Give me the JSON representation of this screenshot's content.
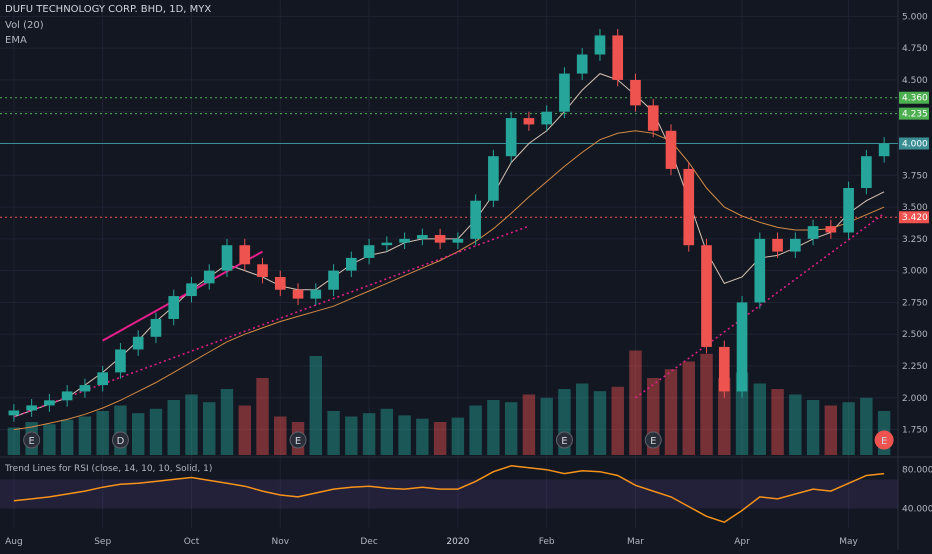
{
  "header": {
    "title": "DUFU TECHNOLOGY CORP. BHD, 1D, MYX",
    "vol_label": "Vol (20)",
    "ema_label": "EMA"
  },
  "indicator": {
    "label": "Trend Lines for RSI (close, 14, 10, 10, Solid, 1)",
    "ticks": [
      "80.000",
      "40.000"
    ]
  },
  "colors": {
    "background": "#131722",
    "up": "#26a69a",
    "down": "#ef5350",
    "grid": "#1f2332",
    "ema_fast": "#d7c3b4",
    "ema_slow": "#d38a45",
    "rsi": "#f7931a",
    "trend_pink": "#e91e8c",
    "level_green": "#4caf50",
    "level_red": "#ef5350",
    "level_teal": "#3b8f94"
  },
  "chart_data": {
    "type": "candlestick",
    "symbol": "DUFU TECHNOLOGY CORP. BHD",
    "interval": "1D",
    "exchange": "MYX",
    "ylim": [
      1.55,
      5.05
    ],
    "y_ticks": [
      "5.000",
      "4.750",
      "4.500",
      "4.250",
      "4.000",
      "3.750",
      "3.500",
      "3.250",
      "3.000",
      "2.750",
      "2.500",
      "2.250",
      "2.000",
      "1.750"
    ],
    "x_ticks": [
      "Aug",
      "Sep",
      "Oct",
      "Nov",
      "Dec",
      "2020",
      "Feb",
      "Mar",
      "Apr",
      "May"
    ],
    "levels": [
      {
        "value": 4.36,
        "label": "4.360",
        "color": "#4caf50",
        "style": "dotted"
      },
      {
        "value": 4.235,
        "label": "4.235",
        "color": "#4caf50",
        "style": "dotted"
      },
      {
        "value": 4.0,
        "label": "4.000",
        "color": "#3b8f94",
        "style": "solid"
      },
      {
        "value": 3.42,
        "label": "3.420",
        "color": "#ef5350",
        "style": "dotted"
      }
    ],
    "price_series": {
      "name": "close",
      "points": [
        [
          "Aug",
          1.9
        ],
        [
          "Aug",
          1.94
        ],
        [
          "Aug",
          1.98
        ],
        [
          "Aug",
          2.05
        ],
        [
          "Aug",
          2.1
        ],
        [
          "Sep",
          2.2
        ],
        [
          "Sep",
          2.38
        ],
        [
          "Sep",
          2.48
        ],
        [
          "Sep",
          2.62
        ],
        [
          "Sep",
          2.8
        ],
        [
          "Oct",
          2.9
        ],
        [
          "Oct",
          3.0
        ],
        [
          "Oct",
          3.2
        ],
        [
          "Oct",
          3.05
        ],
        [
          "Oct",
          2.95
        ],
        [
          "Nov",
          2.85
        ],
        [
          "Nov",
          2.78
        ],
        [
          "Nov",
          2.85
        ],
        [
          "Nov",
          3.0
        ],
        [
          "Nov",
          3.1
        ],
        [
          "Dec",
          3.2
        ],
        [
          "Dec",
          3.22
        ],
        [
          "Dec",
          3.25
        ],
        [
          "Dec",
          3.28
        ],
        [
          "Dec",
          3.22
        ],
        [
          "2020",
          3.25
        ],
        [
          "2020",
          3.55
        ],
        [
          "2020",
          3.9
        ],
        [
          "2020",
          4.2
        ],
        [
          "2020",
          4.15
        ],
        [
          "Feb",
          4.25
        ],
        [
          "Feb",
          4.55
        ],
        [
          "Feb",
          4.7
        ],
        [
          "Feb",
          4.85
        ],
        [
          "Feb",
          4.5
        ],
        [
          "Mar",
          4.3
        ],
        [
          "Mar",
          4.1
        ],
        [
          "Mar",
          3.8
        ],
        [
          "Mar",
          3.2
        ],
        [
          "Mar",
          2.4
        ],
        [
          "Mar",
          2.05
        ],
        [
          "Apr",
          2.75
        ],
        [
          "Apr",
          3.25
        ],
        [
          "Apr",
          3.15
        ],
        [
          "Apr",
          3.25
        ],
        [
          "Apr",
          3.35
        ],
        [
          "Apr",
          3.3
        ],
        [
          "May",
          3.65
        ],
        [
          "May",
          3.9
        ],
        [
          "May",
          4.0
        ]
      ]
    },
    "ema_fast_values": [
      1.85,
      1.9,
      1.95,
      2.0,
      2.1,
      2.2,
      2.32,
      2.45,
      2.6,
      2.72,
      2.85,
      2.95,
      3.05,
      3.0,
      2.95,
      2.88,
      2.85,
      2.85,
      2.95,
      3.05,
      3.12,
      3.15,
      3.22,
      3.25,
      3.25,
      3.25,
      3.4,
      3.6,
      3.85,
      4.0,
      4.1,
      4.25,
      4.42,
      4.55,
      4.5,
      4.38,
      4.25,
      3.95,
      3.55,
      3.15,
      2.9,
      2.95,
      3.1,
      3.12,
      3.18,
      3.25,
      3.3,
      3.45,
      3.55,
      3.62
    ],
    "ema_slow_values": [
      1.75,
      1.77,
      1.8,
      1.83,
      1.87,
      1.92,
      1.98,
      2.05,
      2.12,
      2.2,
      2.28,
      2.36,
      2.44,
      2.5,
      2.55,
      2.6,
      2.64,
      2.68,
      2.72,
      2.78,
      2.84,
      2.9,
      2.96,
      3.02,
      3.08,
      3.15,
      3.23,
      3.33,
      3.45,
      3.58,
      3.7,
      3.82,
      3.93,
      4.03,
      4.08,
      4.1,
      4.08,
      4.02,
      3.85,
      3.65,
      3.5,
      3.43,
      3.38,
      3.34,
      3.32,
      3.32,
      3.33,
      3.38,
      3.44,
      3.5
    ],
    "trend_lines": [
      {
        "name": "pink-solid",
        "from": [
          2.45,
          "Sep"
        ],
        "to": [
          3.15,
          "Oct"
        ],
        "style": "solid"
      },
      {
        "name": "pink-dotted-1",
        "from": [
          1.85,
          "Aug"
        ],
        "to": [
          3.35,
          "2020"
        ],
        "style": "dotted"
      },
      {
        "name": "pink-dotted-2",
        "from": [
          2.0,
          "Mar"
        ],
        "to": [
          3.45,
          "May"
        ],
        "style": "dotted"
      }
    ],
    "volume_relative": [
      0.25,
      0.3,
      0.28,
      0.32,
      0.35,
      0.4,
      0.45,
      0.38,
      0.42,
      0.5,
      0.55,
      0.48,
      0.6,
      0.45,
      0.7,
      0.35,
      0.3,
      0.9,
      0.4,
      0.35,
      0.38,
      0.42,
      0.36,
      0.33,
      0.3,
      0.34,
      0.45,
      0.5,
      0.48,
      0.55,
      0.52,
      0.6,
      0.65,
      0.58,
      0.62,
      0.95,
      0.7,
      0.78,
      0.85,
      0.92,
      0.7,
      0.75,
      0.65,
      0.6,
      0.55,
      0.5,
      0.45,
      0.48,
      0.52,
      0.4
    ],
    "earnings_markers": [
      {
        "label": "E",
        "period": "Aug"
      },
      {
        "label": "D",
        "period": "Sep"
      },
      {
        "label": "E",
        "period": "Nov"
      },
      {
        "label": "E",
        "period": "Feb"
      },
      {
        "label": "E",
        "period": "Mar"
      },
      {
        "label": "E",
        "period": "May"
      }
    ],
    "rsi": {
      "ylim": [
        20,
        90
      ],
      "band": [
        40,
        70
      ],
      "values": [
        48,
        50,
        52,
        55,
        58,
        62,
        65,
        66,
        68,
        70,
        72,
        69,
        66,
        63,
        58,
        54,
        52,
        56,
        60,
        62,
        63,
        61,
        60,
        62,
        60,
        60,
        68,
        78,
        84,
        82,
        80,
        76,
        79,
        78,
        74,
        64,
        58,
        52,
        42,
        32,
        26,
        38,
        52,
        50,
        55,
        60,
        58,
        66,
        74,
        76
      ]
    }
  }
}
